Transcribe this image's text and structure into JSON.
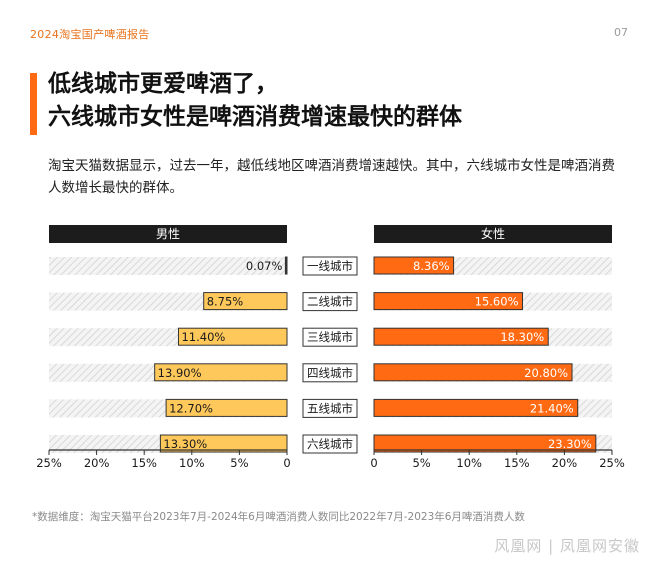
{
  "header": {
    "report_title": "2024淘宝国产啤酒报告",
    "page_number": "07"
  },
  "title": {
    "line1": "低线城市更爱啤酒了，",
    "line2": "六线城市女性是啤酒消费增速最快的群体"
  },
  "description": "淘宝天猫数据显示，过去一年，越低线地区啤酒消费增速越快。其中，六线城市女性是啤酒消费人数增长最快的群体。",
  "footnote": "*数据维度：淘宝天猫平台2023年7月-2024年6月啤酒消费人数同比2022年7月-2023年6月啤酒消费人数",
  "watermark": "风凰网 | 凤凰网安徽",
  "colors": {
    "male": "#ffc85a",
    "female": "#ff6a13",
    "header_band": "#1c1c1c",
    "accent": "#ff6a13"
  },
  "chart_data": {
    "type": "bar",
    "orientation": "horizontal-butterfly",
    "categories": [
      "一线城市",
      "二线城市",
      "三线城市",
      "四线城市",
      "五线城市",
      "六线城市"
    ],
    "series": [
      {
        "name": "男性",
        "values": [
          0.07,
          8.75,
          11.4,
          13.9,
          12.7,
          13.3
        ],
        "labels": [
          "0.07%",
          "8.75%",
          "11.40%",
          "13.90%",
          "12.70%",
          "13.30%"
        ]
      },
      {
        "name": "女性",
        "values": [
          8.36,
          15.6,
          18.3,
          20.8,
          21.4,
          23.3
        ],
        "labels": [
          "8.36%",
          "15.60%",
          "18.30%",
          "20.80%",
          "21.40%",
          "23.30%"
        ]
      }
    ],
    "xlim": [
      0,
      25
    ],
    "ticks_male": [
      "25%",
      "20%",
      "15%",
      "10%",
      "5%",
      "0"
    ],
    "ticks_female": [
      "0",
      "5%",
      "10%",
      "15%",
      "20%",
      "25%"
    ],
    "legend": "header-bands"
  }
}
